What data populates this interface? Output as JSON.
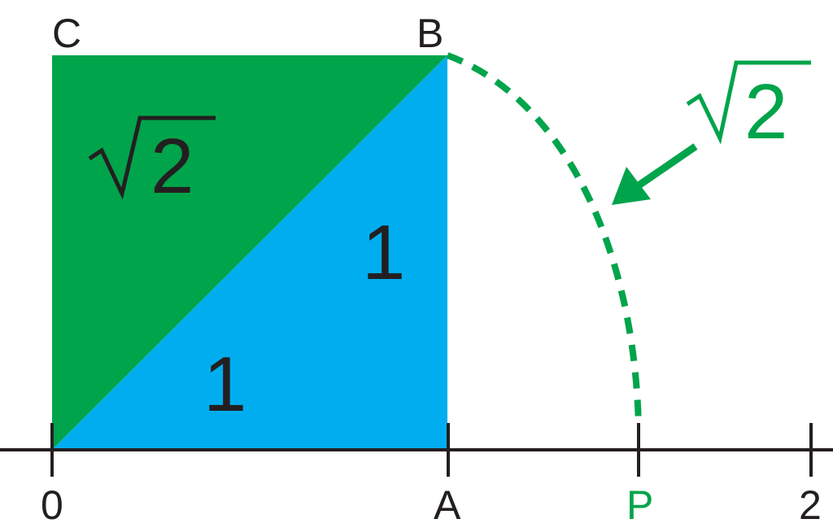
{
  "colors": {
    "green": "#00a44b",
    "blue": "#00aeef",
    "black": "#231f20"
  },
  "labels": {
    "corner_c": "C",
    "corner_b": "B",
    "axis_zero": "0",
    "axis_a": "A",
    "axis_p": "P",
    "axis_two": "2",
    "side_bottom": "1",
    "side_right": "1",
    "diagonal_radicand": "2",
    "arc_radicand": "2"
  }
}
